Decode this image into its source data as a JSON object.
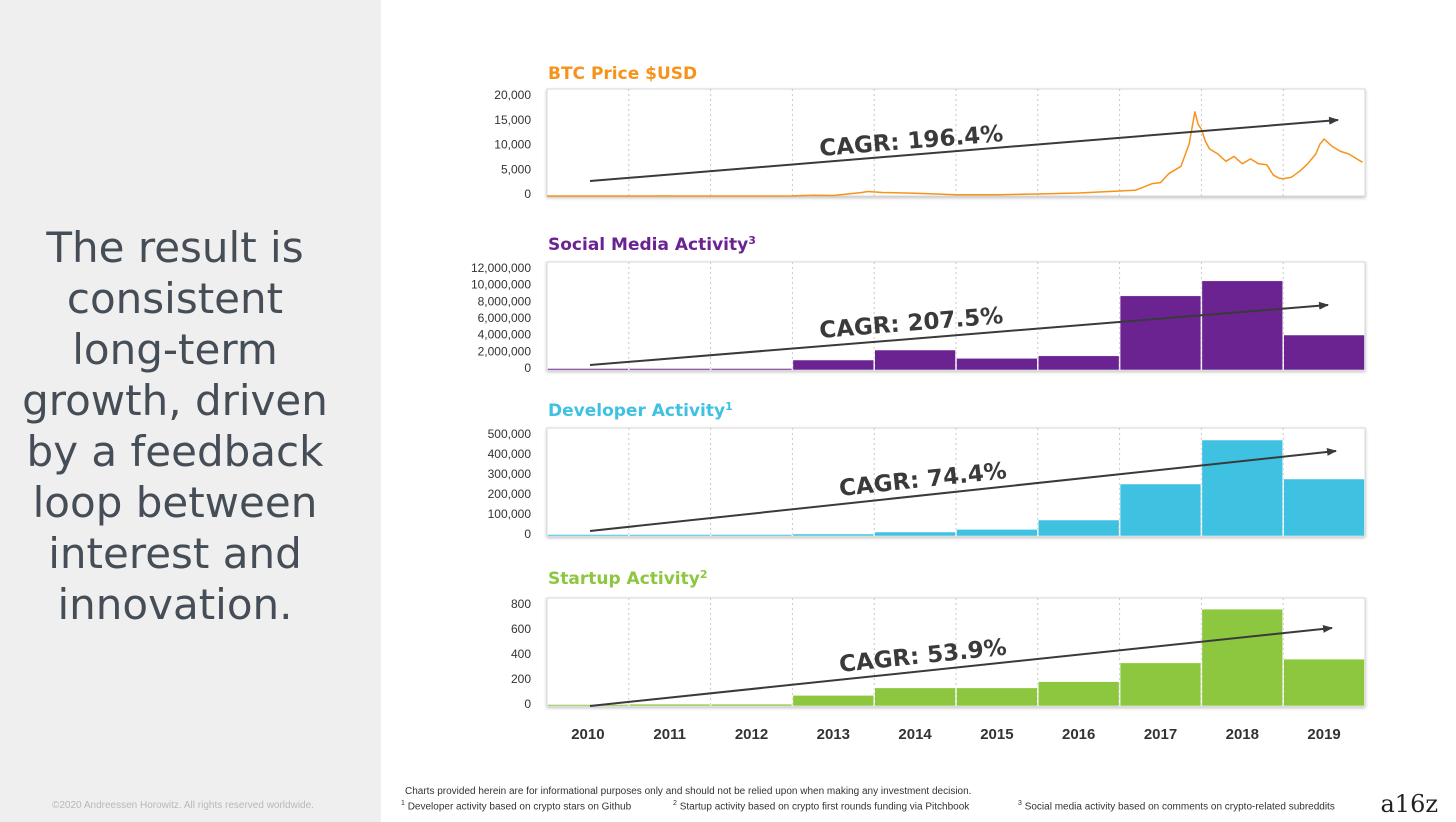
{
  "headline": "The result is\nconsistent\nlong-term\ngrowth, driven\nby a feedback\nloop between\ninterest and\ninnovation.",
  "copyright": "©2020 Andreessen Horowitz. All rights reserved worldwide.",
  "brand": "a16z",
  "disclaimer": "Charts provided herein are for informational purposes only and should not be relied upon when making any investment decision.",
  "footnotes": [
    {
      "num": "1",
      "text": "Developer activity based on crypto stars on Github"
    },
    {
      "num": "2",
      "text": "Startup activity based on crypto first rounds funding via Pitchbook"
    },
    {
      "num": "3",
      "text": "Social media activity based on comments on crypto-related subreddits"
    }
  ],
  "x_tick_labels": [
    "2010",
    "2011",
    "2012",
    "2013",
    "2014",
    "2015",
    "2016",
    "2017",
    "2018",
    "2019"
  ],
  "colors": {
    "btc": "#f7931a",
    "social": "#6b2391",
    "developer": "#3fc1e2",
    "startup": "#8dc63f",
    "arrow": "#3a3a3a"
  },
  "chart_data": [
    {
      "type": "line",
      "title": "BTC Price $USD",
      "title_sup": "",
      "annotation": "CAGR: 196.4%",
      "ylim": [
        0,
        20000
      ],
      "xlim": [
        2010.0,
        2020.0
      ],
      "yticks": [
        "20,000",
        "15,000",
        "10,000",
        "5,000",
        "0"
      ],
      "series": [
        {
          "x": [
            2010.0,
            2010.5,
            2011.0,
            2011.3,
            2011.45,
            2011.6,
            2012.0,
            2012.5,
            2013.0,
            2013.25,
            2013.5,
            2013.85,
            2013.92,
            2014.1,
            2014.5,
            2015.0,
            2015.5,
            2016.0,
            2016.5,
            2017.0,
            2017.2,
            2017.4,
            2017.5,
            2017.6,
            2017.75,
            2017.85,
            2017.92,
            2017.96,
            2018.0,
            2018.05,
            2018.1,
            2018.2,
            2018.3,
            2018.4,
            2018.5,
            2018.6,
            2018.7,
            2018.8,
            2018.88,
            2018.95,
            2019.0,
            2019.1,
            2019.2,
            2019.3,
            2019.4,
            2019.45,
            2019.5,
            2019.6,
            2019.7,
            2019.8,
            2019.9,
            2019.97
          ],
          "y": [
            0,
            0,
            0,
            0,
            30,
            10,
            5,
            10,
            15,
            150,
            100,
            700,
            900,
            700,
            550,
            250,
            250,
            400,
            600,
            1000,
            1200,
            2500,
            2700,
            4500,
            6000,
            10500,
            17000,
            14500,
            13500,
            11000,
            9500,
            8500,
            7000,
            8000,
            6500,
            7500,
            6500,
            6300,
            4200,
            3600,
            3500,
            3800,
            5000,
            6500,
            8500,
            10500,
            11500,
            10000,
            9000,
            8500,
            7500,
            6800
          ]
        }
      ]
    },
    {
      "type": "bar",
      "title": "Social Media Activity",
      "title_sup": "3",
      "annotation": "CAGR: 207.5%",
      "ylim": [
        0,
        12000000
      ],
      "yticks": [
        "12,000,000",
        "10,000,000",
        "8,000,000",
        "6,000,000",
        "4,000,000",
        "2,000,000",
        "0"
      ],
      "categories": [
        "2010",
        "2011",
        "2012",
        "2013",
        "2014",
        "2015",
        "2016",
        "2017",
        "2018",
        "2019"
      ],
      "values": [
        100000,
        100000,
        100000,
        1200000,
        2400000,
        1400000,
        1700000,
        8900000,
        10700000,
        4200000
      ]
    },
    {
      "type": "bar",
      "title": "Developer Activity",
      "title_sup": "1",
      "annotation": "CAGR: 74.4%",
      "ylim": [
        0,
        500000
      ],
      "yticks": [
        "500,000",
        "400,000",
        "300,000",
        "200,000",
        "100,000",
        "0"
      ],
      "categories": [
        "2010",
        "2011",
        "2012",
        "2013",
        "2014",
        "2015",
        "2016",
        "2017",
        "2018",
        "2019"
      ],
      "values": [
        2000,
        4000,
        6000,
        10000,
        20000,
        33000,
        80000,
        260000,
        480000,
        285000
      ]
    },
    {
      "type": "bar",
      "title": "Startup Activity",
      "title_sup": "2",
      "annotation": "CAGR: 53.9%",
      "ylim": [
        0,
        800
      ],
      "yticks": [
        "800",
        "600",
        "400",
        "200",
        "0"
      ],
      "categories": [
        "2010",
        "2011",
        "2012",
        "2013",
        "2014",
        "2015",
        "2016",
        "2017",
        "2018",
        "2019"
      ],
      "values": [
        5,
        15,
        15,
        85,
        145,
        145,
        195,
        345,
        775,
        375
      ]
    }
  ]
}
